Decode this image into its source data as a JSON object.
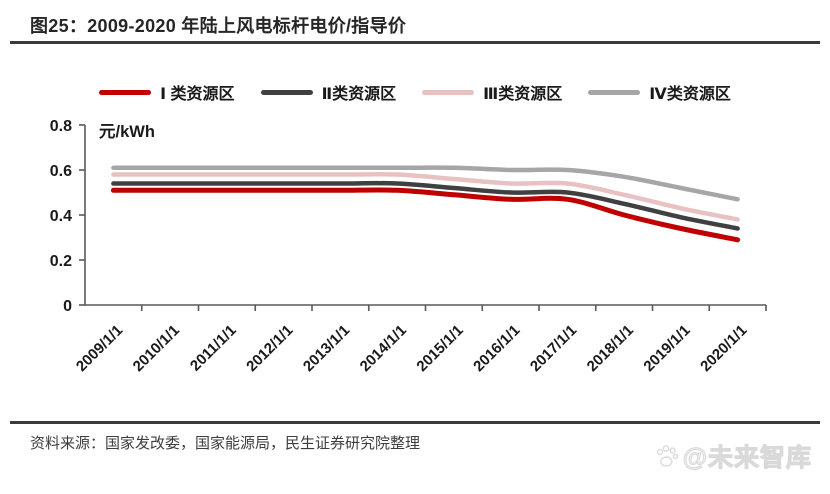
{
  "figure": {
    "title": "图25：2009-2020 年陆上风电标杆电价/指导价",
    "source": "资料来源：国家发改委，国家能源局，民生证券研究院整理",
    "watermark": "@未来智库"
  },
  "chart_data": {
    "type": "line",
    "title": "2009-2020 年陆上风电标杆电价/指导价",
    "unit_label": "元/kWh",
    "xlabel": "",
    "ylabel": "元/kWh",
    "ylim": [
      0,
      0.8
    ],
    "yticks": [
      0,
      0.2,
      0.4,
      0.6,
      0.8
    ],
    "grid": false,
    "line_style": "smooth",
    "legend_position": "top",
    "categories": [
      "2009/1/1",
      "2010/1/1",
      "2011/1/1",
      "2012/1/1",
      "2013/1/1",
      "2014/1/1",
      "2015/1/1",
      "2016/1/1",
      "2017/1/1",
      "2018/1/1",
      "2019/1/1",
      "2020/1/1"
    ],
    "series": [
      {
        "name": "Ⅰ 类资源区",
        "color": "#C00000",
        "values": [
          0.51,
          0.51,
          0.51,
          0.51,
          0.51,
          0.51,
          0.49,
          0.47,
          0.47,
          0.4,
          0.34,
          0.29
        ]
      },
      {
        "name": "Ⅱ类资源区",
        "color": "#404040",
        "values": [
          0.54,
          0.54,
          0.54,
          0.54,
          0.54,
          0.54,
          0.52,
          0.5,
          0.5,
          0.45,
          0.39,
          0.34
        ]
      },
      {
        "name": "Ⅲ类资源区",
        "color": "#E8C2C2",
        "values": [
          0.58,
          0.58,
          0.58,
          0.58,
          0.58,
          0.58,
          0.56,
          0.54,
          0.54,
          0.49,
          0.43,
          0.38
        ]
      },
      {
        "name": "Ⅳ类资源区",
        "color": "#A6A6A6",
        "values": [
          0.61,
          0.61,
          0.61,
          0.61,
          0.61,
          0.61,
          0.61,
          0.6,
          0.6,
          0.57,
          0.52,
          0.47
        ]
      }
    ]
  }
}
